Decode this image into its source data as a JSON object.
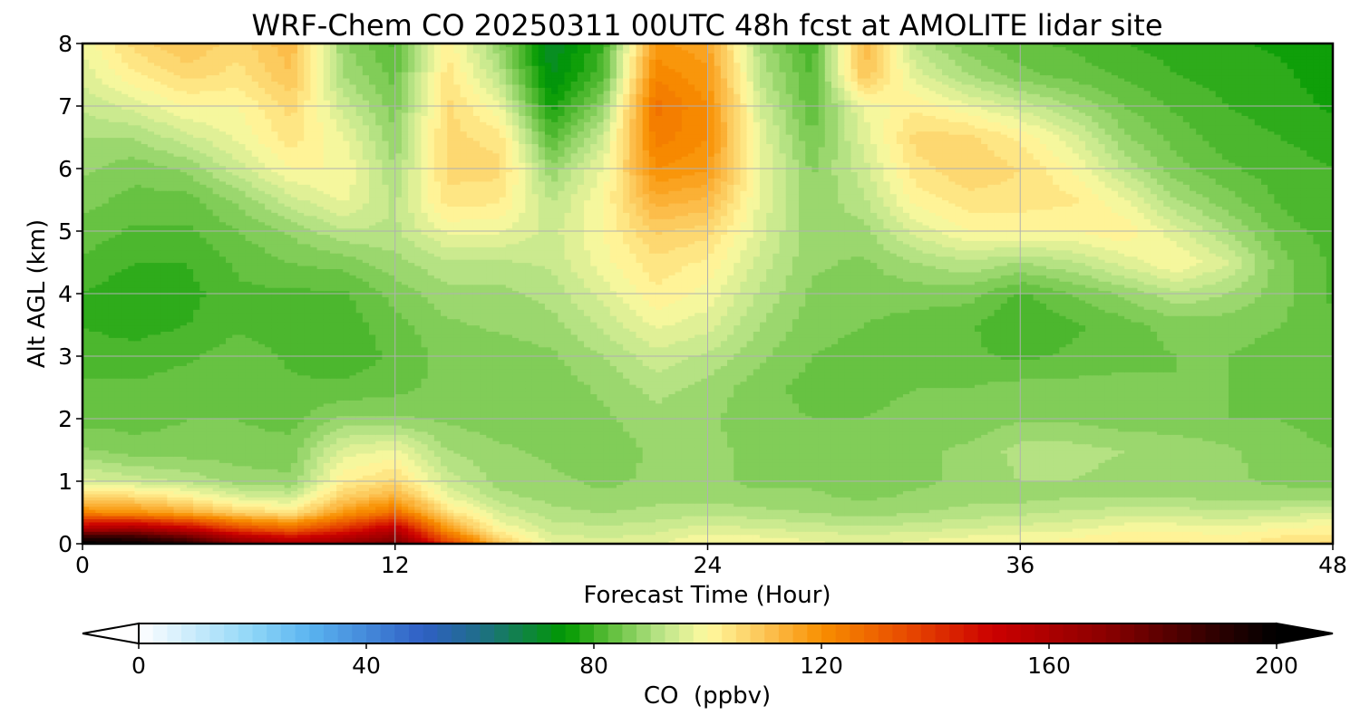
{
  "chart_data": {
    "type": "heatmap",
    "title": "WRF-Chem CO  20250311 00UTC 48h fcst at AMOLITE lidar site",
    "xlabel": "Forecast Time (Hour)",
    "ylabel": "Alt AGL (km)",
    "xlim": [
      0,
      48
    ],
    "ylim": [
      0,
      8
    ],
    "x_ticks": [
      "0",
      "12",
      "24",
      "36",
      "48"
    ],
    "y_ticks": [
      "0",
      "1",
      "2",
      "3",
      "4",
      "5",
      "6",
      "7",
      "8"
    ],
    "grid": true,
    "z_label": "CO  (ppbv)",
    "z_range": [
      0,
      200
    ],
    "z_ticks": [
      "0",
      "40",
      "80",
      "120",
      "160",
      "200"
    ],
    "colorbar_extend": "both",
    "colorbar_position": "bottom",
    "under_color": "#ffffff",
    "over_color": "#000000",
    "colormap": [
      {
        "v": 0,
        "c": "#ffffff"
      },
      {
        "v": 20,
        "c": "#8fd6f7"
      },
      {
        "v": 30,
        "c": "#5ab4f0"
      },
      {
        "v": 50,
        "c": "#2f5fc4"
      },
      {
        "v": 60,
        "c": "#1f6e88"
      },
      {
        "v": 75,
        "c": "#009900"
      },
      {
        "v": 82,
        "c": "#55bb33"
      },
      {
        "v": 92,
        "c": "#bde58a"
      },
      {
        "v": 100,
        "c": "#fffaa0"
      },
      {
        "v": 110,
        "c": "#fcc455"
      },
      {
        "v": 120,
        "c": "#f88f00"
      },
      {
        "v": 135,
        "c": "#e84a00"
      },
      {
        "v": 150,
        "c": "#cc0000"
      },
      {
        "v": 170,
        "c": "#8b0000"
      },
      {
        "v": 190,
        "c": "#2b0000"
      },
      {
        "v": 200,
        "c": "#000000"
      }
    ],
    "x": [
      0,
      2,
      4,
      6,
      8,
      10,
      12,
      14,
      16,
      18,
      20,
      22,
      24,
      26,
      28,
      30,
      32,
      34,
      36,
      38,
      40,
      42,
      44,
      46,
      48
    ],
    "y": [
      0,
      0.1,
      0.25,
      0.5,
      0.75,
      1,
      1.5,
      2,
      2.5,
      3,
      3.5,
      4,
      4.5,
      5,
      5.5,
      6,
      6.5,
      7,
      7.5,
      8
    ],
    "z": [
      [
        200,
        198,
        190,
        170,
        160,
        165,
        175,
        140,
        110,
        98,
        96,
        97,
        100,
        99,
        98,
        97,
        98,
        99,
        100,
        101,
        103,
        103,
        102,
        104,
        106
      ],
      [
        192,
        190,
        180,
        160,
        150,
        158,
        168,
        130,
        106,
        96,
        95,
        96,
        99,
        98,
        97,
        96,
        97,
        98,
        99,
        100,
        102,
        102,
        101,
        103,
        104
      ],
      [
        158,
        162,
        152,
        135,
        128,
        140,
        155,
        118,
        100,
        94,
        93,
        94,
        96,
        95,
        94,
        93,
        94,
        95,
        96,
        97,
        99,
        99,
        98,
        100,
        101
      ],
      [
        122,
        120,
        115,
        108,
        104,
        118,
        128,
        105,
        95,
        91,
        90,
        91,
        92,
        91,
        90,
        89,
        90,
        91,
        92,
        93,
        94,
        94,
        93,
        94,
        95
      ],
      [
        108,
        106,
        102,
        96,
        94,
        108,
        114,
        98,
        91,
        89,
        88,
        89,
        89,
        88,
        88,
        87,
        88,
        89,
        89,
        90,
        90,
        90,
        89,
        89,
        89
      ],
      [
        96,
        94,
        92,
        89,
        88,
        102,
        106,
        94,
        89,
        88,
        87,
        88,
        88,
        87,
        87,
        86,
        87,
        88,
        90,
        90,
        89,
        89,
        88,
        87,
        86
      ],
      [
        88,
        86,
        86,
        86,
        86,
        96,
        98,
        90,
        88,
        87,
        86,
        88,
        88,
        87,
        87,
        86,
        87,
        88,
        91,
        91,
        90,
        89,
        88,
        86,
        85
      ],
      [
        84,
        84,
        85,
        85,
        84,
        88,
        88,
        87,
        86,
        86,
        87,
        89,
        88,
        86,
        85,
        85,
        86,
        86,
        87,
        87,
        86,
        86,
        85,
        85,
        84
      ],
      [
        83,
        83,
        84,
        85,
        83,
        83,
        84,
        86,
        85,
        86,
        88,
        91,
        89,
        86,
        84,
        84,
        85,
        85,
        86,
        86,
        86,
        85,
        85,
        84,
        84
      ],
      [
        81,
        81,
        82,
        84,
        82,
        81,
        83,
        86,
        86,
        87,
        90,
        94,
        92,
        88,
        85,
        84,
        84,
        83,
        82,
        83,
        84,
        85,
        85,
        84,
        83
      ],
      [
        80,
        79,
        80,
        82,
        81,
        81,
        84,
        87,
        88,
        89,
        93,
        98,
        96,
        90,
        86,
        85,
        84,
        83,
        80,
        82,
        84,
        86,
        86,
        85,
        83
      ],
      [
        80,
        78,
        79,
        82,
        82,
        82,
        86,
        89,
        89,
        91,
        96,
        102,
        99,
        92,
        87,
        86,
        86,
        86,
        82,
        85,
        88,
        92,
        90,
        86,
        82
      ],
      [
        82,
        80,
        80,
        83,
        85,
        86,
        89,
        92,
        92,
        93,
        99,
        104,
        102,
        94,
        88,
        87,
        90,
        92,
        90,
        92,
        96,
        100,
        95,
        86,
        82
      ],
      [
        84,
        82,
        82,
        85,
        88,
        92,
        92,
        98,
        98,
        94,
        100,
        108,
        106,
        96,
        88,
        89,
        96,
        100,
        100,
        100,
        102,
        96,
        90,
        84,
        81
      ],
      [
        86,
        84,
        84,
        88,
        94,
        98,
        92,
        104,
        103,
        92,
        100,
        114,
        112,
        97,
        88,
        92,
        101,
        104,
        104,
        103,
        98,
        90,
        86,
        82,
        80
      ],
      [
        88,
        86,
        88,
        94,
        100,
        100,
        90,
        106,
        106,
        88,
        98,
        120,
        118,
        98,
        87,
        94,
        104,
        107,
        105,
        100,
        92,
        86,
        83,
        81,
        80
      ],
      [
        90,
        90,
        94,
        98,
        104,
        98,
        88,
        106,
        104,
        82,
        94,
        124,
        120,
        97,
        85,
        96,
        106,
        106,
        102,
        96,
        88,
        84,
        81,
        80,
        79
      ],
      [
        93,
        96,
        100,
        100,
        106,
        94,
        86,
        106,
        98,
        76,
        88,
        126,
        120,
        95,
        83,
        98,
        102,
        98,
        94,
        90,
        85,
        82,
        80,
        79,
        77
      ],
      [
        96,
        102,
        106,
        104,
        110,
        90,
        84,
        104,
        92,
        72,
        82,
        122,
        118,
        92,
        82,
        110,
        96,
        90,
        86,
        84,
        82,
        80,
        79,
        78,
        76
      ],
      [
        98,
        106,
        110,
        106,
        112,
        88,
        82,
        102,
        88,
        70,
        80,
        118,
        116,
        90,
        80,
        112,
        92,
        86,
        83,
        82,
        80,
        79,
        78,
        77,
        76
      ]
    ],
    "resample_step": 0.25,
    "levels_step": 2.5
  }
}
